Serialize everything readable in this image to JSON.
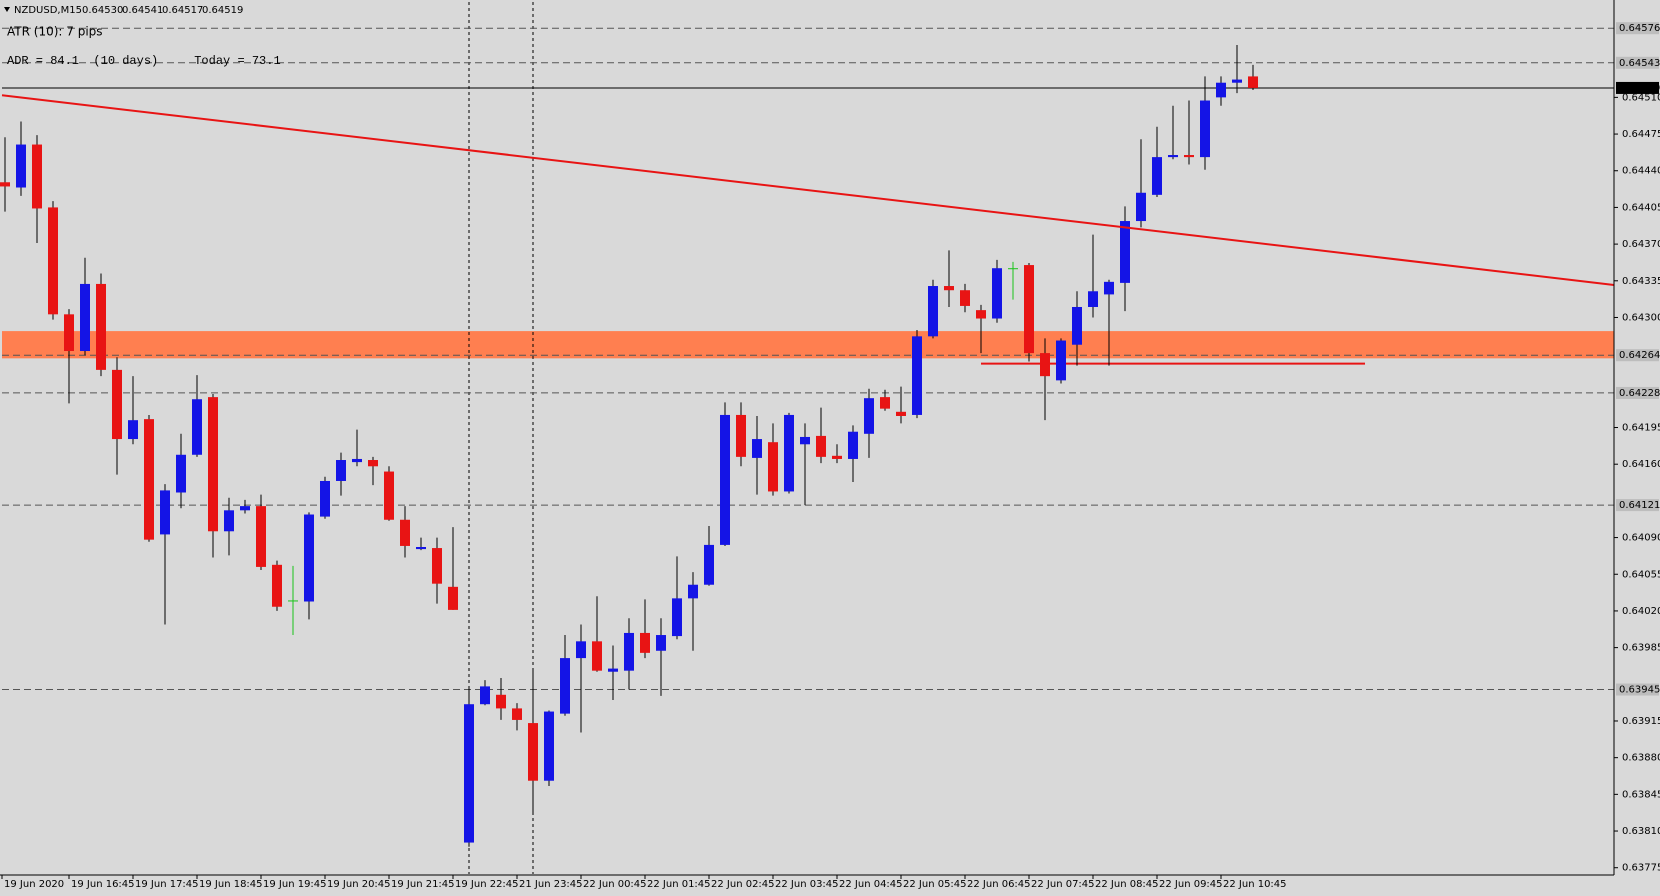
{
  "chart_data": {
    "type": "candlestick",
    "header": {
      "symbol": "NZDUSD,M15",
      "quote": [
        "0.64530",
        "0.64541",
        "0.64517",
        "0.64519"
      ]
    },
    "annotations": [
      "ATR (10): 7 pips",
      "ADR = 84.1  (10 days)     Today = 73.1"
    ],
    "categories": [
      "19 Jun 2020",
      null,
      null,
      null,
      "19 Jun 16:45",
      null,
      null,
      null,
      "19 Jun 17:45",
      null,
      null,
      null,
      "19 Jun 18:45",
      null,
      null,
      null,
      "19 Jun 19:45",
      null,
      null,
      null,
      "19 Jun 20:45",
      null,
      null,
      null,
      "19 Jun 21:45",
      null,
      null,
      null,
      "19 Jun 22:45",
      null,
      null,
      null,
      "21 Jun 23:45",
      null,
      null,
      null,
      "22 Jun 00:45",
      null,
      null,
      null,
      "22 Jun 01:45",
      null,
      null,
      null,
      "22 Jun 02:45",
      null,
      null,
      null,
      "22 Jun 03:45",
      null,
      null,
      null,
      "22 Jun 04:45",
      null,
      null,
      null,
      "22 Jun 05:45",
      null,
      null,
      null,
      "22 Jun 06:45",
      null,
      null,
      null,
      "22 Jun 07:45",
      null,
      null,
      null,
      "22 Jun 08:45",
      null,
      null,
      null,
      "22 Jun 09:45",
      null,
      null,
      null,
      "22 Jun 10:45",
      null,
      null
    ],
    "open": [
      0.64429,
      0.64424,
      0.64465,
      0.64405,
      0.64303,
      0.64268,
      0.64332,
      0.6425,
      0.64184,
      0.64203,
      0.64093,
      0.64133,
      0.64169,
      0.64224,
      0.64096,
      0.64116,
      0.6412,
      0.64064,
      0.6403,
      0.64029,
      0.6411,
      0.64144,
      0.64162,
      0.64164,
      0.64153,
      0.64107,
      0.64079,
      0.6408,
      0.64043,
      0.63799,
      0.63931,
      0.6394,
      0.63927,
      0.63913,
      0.63858,
      0.63922,
      0.63975,
      0.63991,
      0.63962,
      0.63963,
      0.63999,
      0.63982,
      0.63996,
      0.64032,
      0.64045,
      0.64083,
      0.64207,
      0.64166,
      0.64181,
      0.64134,
      0.64179,
      0.64187,
      0.64168,
      0.64165,
      0.64189,
      0.64224,
      0.6421,
      0.64207,
      0.64282,
      0.6433,
      0.64326,
      0.64307,
      0.64299,
      0.64347,
      0.6435,
      0.64266,
      0.6424,
      0.64274,
      0.6431,
      0.64322,
      0.64333,
      0.64392,
      0.64417,
      0.64453,
      0.64455,
      0.64453,
      0.6451,
      0.64524,
      0.6453
    ],
    "high": [
      0.64472,
      0.64487,
      0.64474,
      0.64411,
      0.64308,
      0.64357,
      0.64342,
      0.64262,
      0.64244,
      0.64207,
      0.64141,
      0.64189,
      0.64245,
      0.64227,
      0.64128,
      0.64126,
      0.64131,
      0.64068,
      0.64063,
      0.64114,
      0.64148,
      0.64171,
      0.64193,
      0.64167,
      0.64158,
      0.6412,
      0.6409,
      0.6409,
      0.641,
      0.63946,
      0.63954,
      0.63956,
      0.63932,
      0.63964,
      0.63925,
      0.63997,
      0.64007,
      0.64034,
      0.63987,
      0.64013,
      0.64031,
      0.64013,
      0.64072,
      0.64057,
      0.64101,
      0.64219,
      0.64219,
      0.64206,
      0.64199,
      0.64209,
      0.64199,
      0.64214,
      0.64179,
      0.64197,
      0.64232,
      0.64231,
      0.64234,
      0.64288,
      0.64336,
      0.64364,
      0.64332,
      0.64312,
      0.64355,
      0.64353,
      0.64352,
      0.6428,
      0.6428,
      0.64325,
      0.64379,
      0.64336,
      0.64406,
      0.6447,
      0.64482,
      0.64502,
      0.64507,
      0.6453,
      0.6453,
      0.6456,
      0.64541
    ],
    "low": [
      0.64401,
      0.64416,
      0.64371,
      0.64298,
      0.64218,
      0.64264,
      0.64244,
      0.6415,
      0.64179,
      0.64086,
      0.64007,
      0.64118,
      0.64167,
      0.64071,
      0.64073,
      0.64113,
      0.64059,
      0.6402,
      0.63997,
      0.64012,
      0.64108,
      0.6413,
      0.64158,
      0.6414,
      0.64106,
      0.64071,
      0.64078,
      0.64027,
      0.64021,
      0.63795,
      0.6393,
      0.63916,
      0.63906,
      0.63826,
      0.63853,
      0.6392,
      0.63904,
      0.63962,
      0.63935,
      0.63945,
      0.63975,
      0.63939,
      0.63993,
      0.63982,
      0.64044,
      0.64082,
      0.64158,
      0.64131,
      0.6413,
      0.64132,
      0.64121,
      0.64161,
      0.64161,
      0.64143,
      0.64166,
      0.64211,
      0.64199,
      0.64204,
      0.6428,
      0.6431,
      0.64305,
      0.64266,
      0.64295,
      0.64317,
      0.64258,
      0.64202,
      0.64237,
      0.64254,
      0.643,
      0.64254,
      0.64306,
      0.64386,
      0.64415,
      0.64451,
      0.64446,
      0.64441,
      0.64502,
      0.64514,
      0.64517
    ],
    "close": [
      0.64425,
      0.64465,
      0.64404,
      0.64303,
      0.64268,
      0.64332,
      0.6425,
      0.64184,
      0.64202,
      0.64088,
      0.64135,
      0.64169,
      0.64222,
      0.64096,
      0.64116,
      0.6412,
      0.64062,
      0.64024,
      0.6403,
      0.64112,
      0.64144,
      0.64164,
      0.64165,
      0.64158,
      0.64107,
      0.64082,
      0.64081,
      0.64046,
      0.64021,
      0.63931,
      0.63948,
      0.63927,
      0.63916,
      0.63858,
      0.63924,
      0.63975,
      0.63991,
      0.63963,
      0.63965,
      0.63999,
      0.6398,
      0.63997,
      0.64032,
      0.64045,
      0.64083,
      0.64207,
      0.64167,
      0.64184,
      0.64134,
      0.64207,
      0.64186,
      0.64167,
      0.64165,
      0.64191,
      0.64223,
      0.64213,
      0.64206,
      0.64282,
      0.6433,
      0.64326,
      0.64311,
      0.64299,
      0.64347,
      0.64347,
      0.64266,
      0.64244,
      0.64278,
      0.6431,
      0.64325,
      0.64334,
      0.64392,
      0.64419,
      0.64453,
      0.64455,
      0.64453,
      0.64507,
      0.64524,
      0.64527,
      0.64519
    ],
    "up_color": "#1414e6",
    "down_color": "#e81414",
    "doji_color": "#19c419",
    "wick_color": "#000000",
    "ylim": [
      0.63769,
      0.64601
    ],
    "yticks": [
      {
        "value": 0.6451,
        "label": "0.64510"
      },
      0.64475,
      {
        "value": 0.6444,
        "label": "0.64440"
      },
      0.64405,
      {
        "value": 0.6437,
        "label": "0.64370"
      },
      0.64335,
      {
        "value": 0.643,
        "label": "0.64300"
      },
      0.64195,
      {
        "value": 0.6416,
        "label": "0.64160"
      },
      {
        "value": 0.6409,
        "label": "0.64090"
      },
      0.64055,
      {
        "value": 0.6402,
        "label": "0.64020"
      },
      0.63985,
      0.63915,
      {
        "value": 0.6388,
        "label": "0.63880"
      },
      0.63845,
      {
        "value": 0.6381,
        "label": "0.63810"
      },
      0.63775
    ],
    "levels": [
      0.64576,
      0.64543,
      0.64264,
      0.64228,
      0.64121,
      0.63945
    ],
    "current_price": 0.64519,
    "zone": {
      "values": [
        0.64261,
        0.64287
      ],
      "color": "#ff7f50"
    },
    "trendline": {
      "values": [
        0.64512,
        0.64331
      ],
      "color": "#e81414"
    },
    "segment": {
      "value": 0.64256,
      "from": 61,
      "to": 85,
      "color": "#e81414"
    },
    "vlines": [
      29,
      33
    ]
  }
}
